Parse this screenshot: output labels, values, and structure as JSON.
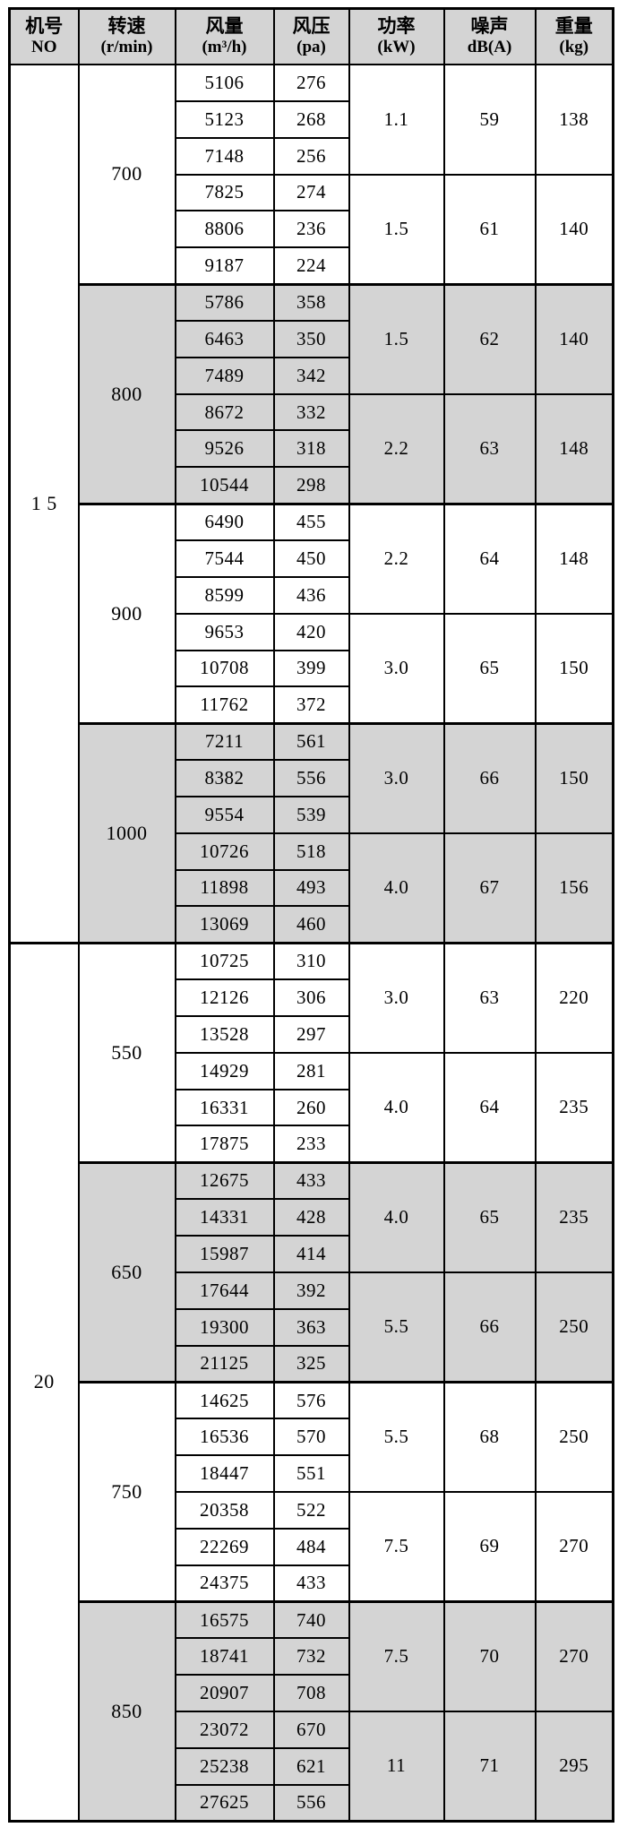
{
  "colors": {
    "shade": "#d4d4d4",
    "border": "#000000",
    "background": "#ffffff"
  },
  "header": {
    "columns": [
      {
        "line1": "机号",
        "line2": "NO"
      },
      {
        "line1": "转速",
        "line2": "(r/min)"
      },
      {
        "line1": "风量",
        "line2": "(m³/h)"
      },
      {
        "line1": "风压",
        "line2": "(pa)"
      },
      {
        "line1": "功率",
        "line2": "(kW)"
      },
      {
        "line1": "噪声",
        "line2": "dB(A)"
      },
      {
        "line1": "重量",
        "line2": "(kg)"
      }
    ]
  },
  "machines": [
    {
      "no": "1 5",
      "speeds": [
        {
          "rpm": "700",
          "shaded": false,
          "rows": [
            [
              "5106",
              "276"
            ],
            [
              "5123",
              "268"
            ],
            [
              "7148",
              "256"
            ],
            [
              "7825",
              "274"
            ],
            [
              "8806",
              "236"
            ],
            [
              "9187",
              "224"
            ]
          ],
          "groups": [
            {
              "power": "1.1",
              "noise": "59",
              "weight": "138"
            },
            {
              "power": "1.5",
              "noise": "61",
              "weight": "140"
            }
          ]
        },
        {
          "rpm": "800",
          "shaded": true,
          "rows": [
            [
              "5786",
              "358"
            ],
            [
              "6463",
              "350"
            ],
            [
              "7489",
              "342"
            ],
            [
              "8672",
              "332"
            ],
            [
              "9526",
              "318"
            ],
            [
              "10544",
              "298"
            ]
          ],
          "groups": [
            {
              "power": "1.5",
              "noise": "62",
              "weight": "140"
            },
            {
              "power": "2.2",
              "noise": "63",
              "weight": "148"
            }
          ]
        },
        {
          "rpm": "900",
          "shaded": false,
          "rows": [
            [
              "6490",
              "455"
            ],
            [
              "7544",
              "450"
            ],
            [
              "8599",
              "436"
            ],
            [
              "9653",
              "420"
            ],
            [
              "10708",
              "399"
            ],
            [
              "11762",
              "372"
            ]
          ],
          "groups": [
            {
              "power": "2.2",
              "noise": "64",
              "weight": "148"
            },
            {
              "power": "3.0",
              "noise": "65",
              "weight": "150"
            }
          ]
        },
        {
          "rpm": "1000",
          "shaded": true,
          "rows": [
            [
              "7211",
              "561"
            ],
            [
              "8382",
              "556"
            ],
            [
              "9554",
              "539"
            ],
            [
              "10726",
              "518"
            ],
            [
              "11898",
              "493"
            ],
            [
              "13069",
              "460"
            ]
          ],
          "groups": [
            {
              "power": "3.0",
              "noise": "66",
              "weight": "150"
            },
            {
              "power": "4.0",
              "noise": "67",
              "weight": "156"
            }
          ]
        }
      ]
    },
    {
      "no": "20",
      "speeds": [
        {
          "rpm": "550",
          "shaded": false,
          "rows": [
            [
              "10725",
              "310"
            ],
            [
              "12126",
              "306"
            ],
            [
              "13528",
              "297"
            ],
            [
              "14929",
              "281"
            ],
            [
              "16331",
              "260"
            ],
            [
              "17875",
              "233"
            ]
          ],
          "groups": [
            {
              "power": "3.0",
              "noise": "63",
              "weight": "220"
            },
            {
              "power": "4.0",
              "noise": "64",
              "weight": "235"
            }
          ]
        },
        {
          "rpm": "650",
          "shaded": true,
          "rows": [
            [
              "12675",
              "433"
            ],
            [
              "14331",
              "428"
            ],
            [
              "15987",
              "414"
            ],
            [
              "17644",
              "392"
            ],
            [
              "19300",
              "363"
            ],
            [
              "21125",
              "325"
            ]
          ],
          "groups": [
            {
              "power": "4.0",
              "noise": "65",
              "weight": "235"
            },
            {
              "power": "5.5",
              "noise": "66",
              "weight": "250"
            }
          ]
        },
        {
          "rpm": "750",
          "shaded": false,
          "rows": [
            [
              "14625",
              "576"
            ],
            [
              "16536",
              "570"
            ],
            [
              "18447",
              "551"
            ],
            [
              "20358",
              "522"
            ],
            [
              "22269",
              "484"
            ],
            [
              "24375",
              "433"
            ]
          ],
          "groups": [
            {
              "power": "5.5",
              "noise": "68",
              "weight": "250"
            },
            {
              "power": "7.5",
              "noise": "69",
              "weight": "270"
            }
          ]
        },
        {
          "rpm": "850",
          "shaded": true,
          "rows": [
            [
              "16575",
              "740"
            ],
            [
              "18741",
              "732"
            ],
            [
              "20907",
              "708"
            ],
            [
              "23072",
              "670"
            ],
            [
              "25238",
              "621"
            ],
            [
              "27625",
              "556"
            ]
          ],
          "groups": [
            {
              "power": "7.5",
              "noise": "70",
              "weight": "270"
            },
            {
              "power": "11",
              "noise": "71",
              "weight": "295"
            }
          ]
        }
      ]
    }
  ]
}
